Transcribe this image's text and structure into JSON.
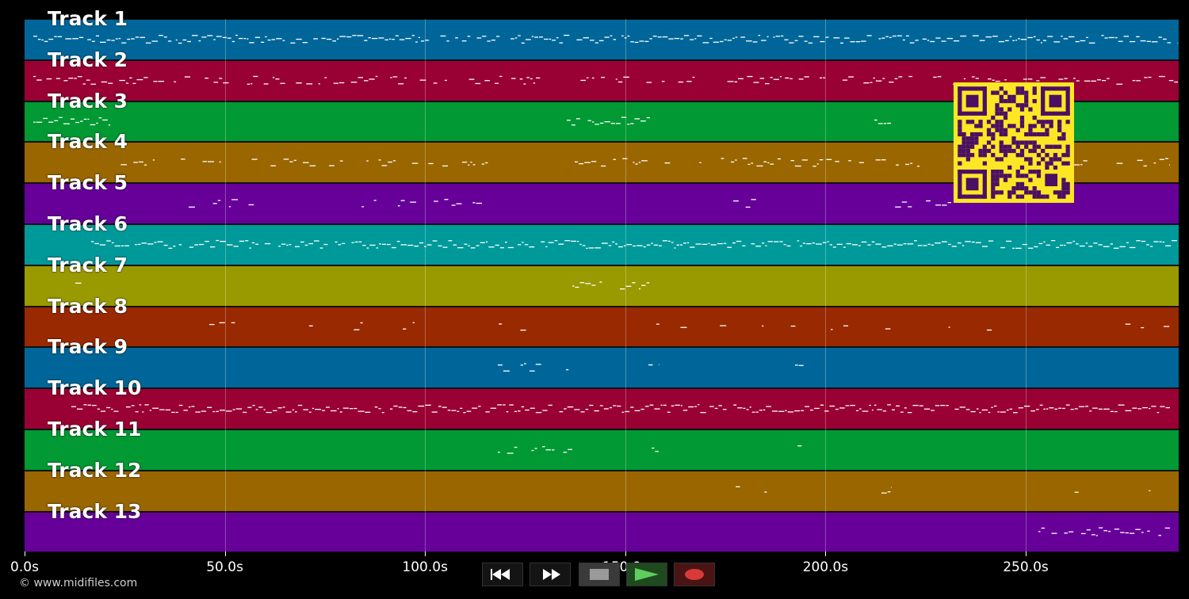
{
  "tracks": [
    {
      "label": "Track 1",
      "color": "#006699"
    },
    {
      "label": "Track 2",
      "color": "#990033"
    },
    {
      "label": "Track 3",
      "color": "#009933"
    },
    {
      "label": "Track 4",
      "color": "#996600"
    },
    {
      "label": "Track 5",
      "color": "#660099"
    },
    {
      "label": "Track 6",
      "color": "#009999"
    },
    {
      "label": "Track 7",
      "color": "#999900"
    },
    {
      "label": "Track 8",
      "color": "#992900"
    },
    {
      "label": "Track 9",
      "color": "#006699"
    },
    {
      "label": "Track 10",
      "color": "#990033"
    },
    {
      "label": "Track 11",
      "color": "#009933"
    },
    {
      "label": "Track 12",
      "color": "#996600"
    },
    {
      "label": "Track 13",
      "color": "#660099"
    }
  ],
  "timeline": {
    "ticks": [
      "0.0s",
      "50.0s",
      "100.0s",
      "150.0s",
      "200.0s",
      "250.0s"
    ]
  },
  "copyright": "© www.midifiles.com",
  "transport": {
    "buttons": [
      {
        "name": "rewind-button",
        "icon": "rewind-icon"
      },
      {
        "name": "fast-forward-button",
        "icon": "fast-forward-icon"
      },
      {
        "name": "stop-button",
        "icon": "stop-icon"
      },
      {
        "name": "play-button",
        "icon": "play-icon"
      },
      {
        "name": "record-button",
        "icon": "record-icon"
      }
    ]
  },
  "qr_code": {
    "icon": "qr-code-icon",
    "color": "#fde725",
    "module_color": "#4b0f63"
  }
}
